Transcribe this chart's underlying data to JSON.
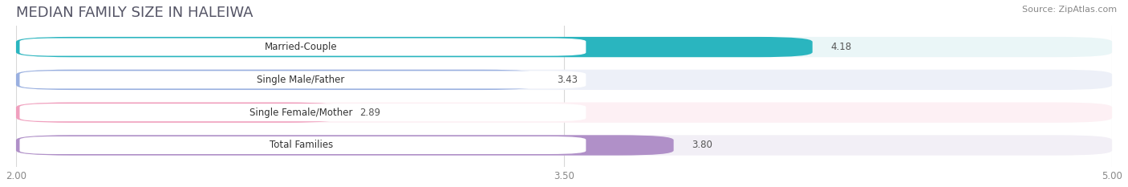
{
  "title": "MEDIAN FAMILY SIZE IN HALEIWA",
  "source": "Source: ZipAtlas.com",
  "categories": [
    "Married-Couple",
    "Single Male/Father",
    "Single Female/Mother",
    "Total Families"
  ],
  "values": [
    4.18,
    3.43,
    2.89,
    3.8
  ],
  "bar_colors": [
    "#2ab5bf",
    "#9ab0e0",
    "#f0a0be",
    "#b090c8"
  ],
  "bar_bg_colors": [
    "#eaf6f7",
    "#edf0f8",
    "#fdf0f4",
    "#f2eff6"
  ],
  "value_text_colors": [
    "#ffffff",
    "#555555",
    "#555555",
    "#ffffff"
  ],
  "xlim": [
    2.0,
    5.0
  ],
  "xticks": [
    2.0,
    3.5,
    5.0
  ],
  "bar_height": 0.62,
  "label_fontsize": 8.5,
  "value_fontsize": 8.5,
  "title_fontsize": 13,
  "source_fontsize": 8,
  "background_color": "#ffffff",
  "grid_color": "#d8d8d8"
}
